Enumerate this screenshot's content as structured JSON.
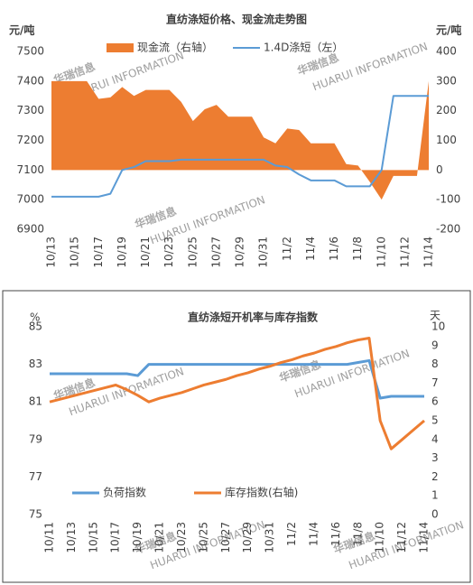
{
  "watermark": {
    "cn": "华瑞信息",
    "en": "HUARUI INFORMATION"
  },
  "chart_data": [
    {
      "type": "combo",
      "title": "直纺涤短价格、现金流走势图",
      "y_label": "元/吨",
      "y2_label": "元/吨",
      "categories": [
        "10/13",
        null,
        "10/15",
        null,
        "10/17",
        null,
        "10/19",
        null,
        "10/21",
        null,
        "10/23",
        null,
        "10/25",
        null,
        "10/27",
        null,
        "10/29",
        null,
        "10/31",
        null,
        "11/2",
        null,
        "11/4",
        null,
        "11/6",
        null,
        "11/8",
        null,
        "11/10",
        null,
        "11/12",
        null,
        "11/14"
      ],
      "series": [
        {
          "name": "现金流（右轴）",
          "kind": "area",
          "axis": "y2",
          "color": "#ed7d31",
          "values": [
            300,
            300,
            300,
            300,
            240,
            245,
            280,
            250,
            270,
            270,
            270,
            230,
            165,
            205,
            220,
            180,
            180,
            180,
            110,
            90,
            140,
            135,
            90,
            90,
            90,
            20,
            15,
            -40,
            -100,
            -20,
            -20,
            -20,
            300
          ]
        },
        {
          "name": "1.4D涤短（左）",
          "kind": "line",
          "color": "#5b9bd5",
          "values": [
            7010,
            7010,
            7010,
            7010,
            7010,
            7020,
            7100,
            7110,
            7130,
            7130,
            7130,
            7135,
            7135,
            7135,
            7135,
            7135,
            7135,
            7135,
            7135,
            7115,
            7110,
            7085,
            7065,
            7065,
            7065,
            7045,
            7045,
            7045,
            7100,
            7350,
            7350,
            7350,
            7350
          ]
        }
      ],
      "ylim": [
        6900,
        7500
      ],
      "yticks": [
        6900,
        7000,
        7100,
        7200,
        7300,
        7400,
        7500
      ],
      "y2lim": [
        -200,
        400
      ],
      "y2ticks": [
        -200,
        -100,
        0,
        100,
        200,
        300,
        400
      ],
      "grid": false
    },
    {
      "type": "line",
      "title": "直纺涤短开机率与库存指数",
      "y_label": "%",
      "y2_label": "天",
      "categories": [
        "10/11",
        null,
        "10/13",
        null,
        "10/15",
        null,
        "10/17",
        null,
        "10/19",
        null,
        "10/21",
        null,
        "10/23",
        null,
        "10/25",
        null,
        "10/27",
        null,
        "10/29",
        null,
        "10/31",
        null,
        "11/2",
        null,
        "11/4",
        null,
        "11/6",
        null,
        "11/8",
        null,
        "11/10",
        null,
        "11/12",
        null,
        "11/14"
      ],
      "series": [
        {
          "name": "负荷指数",
          "kind": "line",
          "color": "#5b9bd5",
          "values": [
            82.5,
            82.5,
            82.5,
            82.5,
            82.5,
            82.5,
            82.5,
            82.5,
            82.4,
            83.0,
            83.0,
            83.0,
            83.0,
            83.0,
            83.0,
            83.0,
            83.0,
            83.0,
            83.0,
            83.0,
            83.0,
            83.0,
            83.0,
            83.0,
            83.0,
            83.0,
            83.0,
            83.0,
            83.1,
            83.2,
            81.2,
            81.3,
            81.3,
            81.3,
            81.3
          ]
        },
        {
          "name": "库存指数(右轴)",
          "kind": "line",
          "axis": "y2",
          "color": "#ed7d31",
          "values": [
            6.0,
            6.15,
            6.3,
            6.45,
            6.6,
            6.75,
            6.9,
            6.65,
            6.35,
            6.0,
            6.2,
            6.35,
            6.5,
            6.7,
            6.9,
            7.05,
            7.2,
            7.4,
            7.55,
            7.75,
            7.9,
            8.1,
            8.25,
            8.45,
            8.6,
            8.8,
            8.95,
            9.15,
            9.3,
            9.4,
            5.0,
            3.5,
            4.0,
            4.5,
            5.0
          ]
        }
      ],
      "ylim": [
        75,
        85
      ],
      "yticks": [
        75,
        77,
        79,
        81,
        83,
        85
      ],
      "y2lim": [
        0,
        10
      ],
      "y2ticks": [
        0,
        1,
        2,
        3,
        4,
        5,
        6,
        7,
        8,
        9,
        10
      ],
      "grid": false
    }
  ]
}
